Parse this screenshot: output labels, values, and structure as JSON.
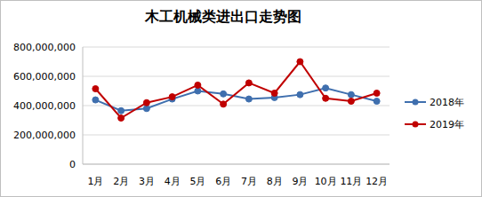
{
  "chart_data": {
    "type": "line",
    "title": "木工机械类进出口走势图",
    "categories": [
      "1月",
      "2月",
      "3月",
      "4月",
      "5月",
      "6月",
      "7月",
      "8月",
      "9月",
      "10月",
      "11月",
      "12月"
    ],
    "series": [
      {
        "name": "2018年",
        "color": "#3f6fae",
        "marker": "circle",
        "values": [
          439000000,
          365000000,
          380000000,
          445000000,
          500000000,
          480000000,
          445000000,
          455000000,
          475000000,
          520000000,
          475000000,
          430000000
        ]
      },
      {
        "name": "2019年",
        "color": "#c00000",
        "marker": "circle",
        "values": [
          515000000,
          315000000,
          420000000,
          460000000,
          540000000,
          410000000,
          555000000,
          485000000,
          700000000,
          450000000,
          430000000,
          485000000
        ]
      }
    ],
    "ylim": [
      0,
      800000000
    ],
    "yticks": [
      0,
      {
        "value": 200000000,
        "label": "200,000,000"
      },
      {
        "value": 400000000,
        "label": "400,000,000"
      },
      {
        "value": 600000000,
        "label": "600,000,000"
      },
      {
        "value": 800000000,
        "label": "800,000,000"
      }
    ],
    "grid": true,
    "legend": "right"
  }
}
